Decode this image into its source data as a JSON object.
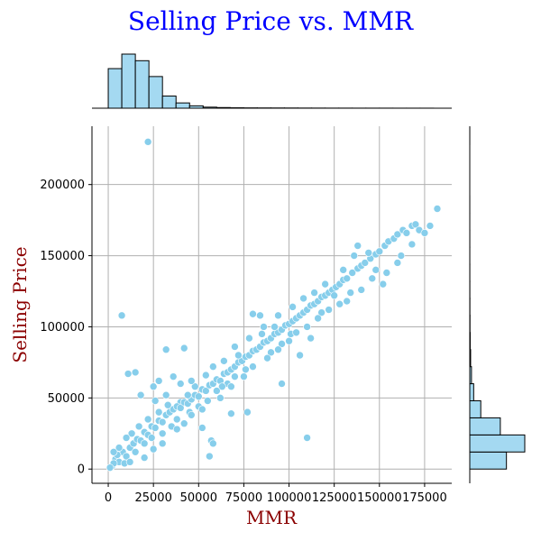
{
  "chart_data": {
    "type": "scatter",
    "title": "Selling Price vs. MMR",
    "xlabel": "MMR",
    "ylabel": "Selling Price",
    "xlim": [
      -9000,
      190000
    ],
    "ylim": [
      -10000,
      241000
    ],
    "xticks": [
      0,
      25000,
      50000,
      75000,
      100000,
      125000,
      150000,
      175000
    ],
    "xtick_labels": [
      "0",
      "25000",
      "50000",
      "75000",
      "100000",
      "125000",
      "150000",
      "175000"
    ],
    "yticks": [
      0,
      50000,
      100000,
      150000,
      200000
    ],
    "ytick_labels": [
      "0",
      "50000",
      "100000",
      "150000",
      "200000"
    ],
    "grid": true,
    "point_color": "#87ceeb",
    "point_edge_color": "#ffffff",
    "marginal_color": "#a4d9f1",
    "points": [
      [
        22000,
        230000
      ],
      [
        7500,
        108000
      ],
      [
        110000,
        22000
      ],
      [
        11000,
        67000
      ],
      [
        15000,
        68000
      ],
      [
        32000,
        84000
      ],
      [
        42000,
        85000
      ],
      [
        80000,
        109000
      ],
      [
        84000,
        108000
      ],
      [
        18000,
        52000
      ],
      [
        25000,
        58000
      ],
      [
        28000,
        62000
      ],
      [
        36000,
        65000
      ],
      [
        40000,
        47000
      ],
      [
        45000,
        40000
      ],
      [
        52000,
        29000
      ],
      [
        56000,
        9000
      ],
      [
        57000,
        20000
      ],
      [
        58000,
        18000
      ],
      [
        68000,
        39000
      ],
      [
        77000,
        40000
      ],
      [
        96000,
        60000
      ],
      [
        106000,
        80000
      ],
      [
        112000,
        92000
      ],
      [
        2000,
        2000
      ],
      [
        4000,
        7000
      ],
      [
        6000,
        5000
      ],
      [
        8000,
        12000
      ],
      [
        10000,
        9000
      ],
      [
        12000,
        15000
      ],
      [
        14000,
        18000
      ],
      [
        16000,
        21000
      ],
      [
        18000,
        20000
      ],
      [
        20000,
        26000
      ],
      [
        22000,
        24000
      ],
      [
        24000,
        30000
      ],
      [
        26000,
        29000
      ],
      [
        28000,
        34000
      ],
      [
        30000,
        33000
      ],
      [
        32000,
        38000
      ],
      [
        34000,
        40000
      ],
      [
        36000,
        42000
      ],
      [
        38000,
        44000
      ],
      [
        40000,
        43000
      ],
      [
        42000,
        47000
      ],
      [
        44000,
        46000
      ],
      [
        46000,
        49000
      ],
      [
        48000,
        52000
      ],
      [
        50000,
        51000
      ],
      [
        52000,
        56000
      ],
      [
        54000,
        55000
      ],
      [
        56000,
        59000
      ],
      [
        58000,
        60000
      ],
      [
        60000,
        63000
      ],
      [
        62000,
        62000
      ],
      [
        64000,
        67000
      ],
      [
        66000,
        68000
      ],
      [
        68000,
        70000
      ],
      [
        70000,
        72000
      ],
      [
        72000,
        75000
      ],
      [
        74000,
        76000
      ],
      [
        76000,
        79000
      ],
      [
        78000,
        80000
      ],
      [
        80000,
        83000
      ],
      [
        82000,
        84000
      ],
      [
        84000,
        86000
      ],
      [
        86000,
        89000
      ],
      [
        88000,
        90000
      ],
      [
        90000,
        92000
      ],
      [
        92000,
        95000
      ],
      [
        94000,
        96000
      ],
      [
        96000,
        98000
      ],
      [
        98000,
        101000
      ],
      [
        100000,
        102000
      ],
      [
        102000,
        104000
      ],
      [
        104000,
        106000
      ],
      [
        106000,
        108000
      ],
      [
        108000,
        110000
      ],
      [
        110000,
        112000
      ],
      [
        112000,
        115000
      ],
      [
        114000,
        116000
      ],
      [
        116000,
        118000
      ],
      [
        118000,
        121000
      ],
      [
        120000,
        122000
      ],
      [
        122000,
        124000
      ],
      [
        124000,
        126000
      ],
      [
        126000,
        128000
      ],
      [
        128000,
        130000
      ],
      [
        130000,
        133000
      ],
      [
        132000,
        134000
      ],
      [
        135000,
        138000
      ],
      [
        138000,
        141000
      ],
      [
        140000,
        143000
      ],
      [
        142000,
        145000
      ],
      [
        145000,
        148000
      ],
      [
        148000,
        151000
      ],
      [
        150000,
        153000
      ],
      [
        153000,
        157000
      ],
      [
        155000,
        160000
      ],
      [
        158000,
        162000
      ],
      [
        160000,
        165000
      ],
      [
        163000,
        168000
      ],
      [
        165000,
        166000
      ],
      [
        168000,
        171000
      ],
      [
        170000,
        172000
      ],
      [
        172000,
        168000
      ],
      [
        175000,
        166000
      ],
      [
        178000,
        171000
      ],
      [
        182000,
        183000
      ],
      [
        138000,
        157000
      ],
      [
        152000,
        130000
      ],
      [
        160000,
        145000
      ],
      [
        148000,
        140000
      ],
      [
        132000,
        118000
      ],
      [
        125000,
        122000
      ],
      [
        118000,
        110000
      ],
      [
        101000,
        95000
      ],
      [
        96000,
        88000
      ],
      [
        90000,
        82000
      ],
      [
        92000,
        100000
      ],
      [
        85000,
        95000
      ],
      [
        76000,
        70000
      ],
      [
        70000,
        65000
      ],
      [
        66000,
        60000
      ],
      [
        72000,
        80000
      ],
      [
        63000,
        58000
      ],
      [
        60000,
        55000
      ],
      [
        55000,
        48000
      ],
      [
        50000,
        44000
      ],
      [
        46000,
        38000
      ],
      [
        48000,
        58000
      ],
      [
        44000,
        52000
      ],
      [
        38000,
        35000
      ],
      [
        35000,
        30000
      ],
      [
        30000,
        25000
      ],
      [
        33000,
        45000
      ],
      [
        28000,
        40000
      ],
      [
        24000,
        22000
      ],
      [
        20000,
        18000
      ],
      [
        22000,
        35000
      ],
      [
        17000,
        30000
      ],
      [
        15000,
        12000
      ],
      [
        13000,
        25000
      ],
      [
        10000,
        22000
      ],
      [
        9000,
        4000
      ],
      [
        6000,
        15000
      ],
      [
        5000,
        10000
      ],
      [
        3000,
        4000
      ],
      [
        1000,
        1000
      ],
      [
        3000,
        12000
      ],
      [
        12000,
        5000
      ],
      [
        20000,
        8000
      ],
      [
        25000,
        14000
      ],
      [
        30000,
        18000
      ],
      [
        38000,
        28000
      ],
      [
        42000,
        32000
      ],
      [
        52000,
        42000
      ],
      [
        62000,
        50000
      ],
      [
        68000,
        58000
      ],
      [
        75000,
        65000
      ],
      [
        80000,
        72000
      ],
      [
        88000,
        78000
      ],
      [
        94000,
        84000
      ],
      [
        100000,
        90000
      ],
      [
        104000,
        96000
      ],
      [
        110000,
        100000
      ],
      [
        116000,
        106000
      ],
      [
        122000,
        112000
      ],
      [
        128000,
        116000
      ],
      [
        134000,
        124000
      ],
      [
        140000,
        126000
      ],
      [
        146000,
        134000
      ],
      [
        154000,
        138000
      ],
      [
        162000,
        150000
      ],
      [
        168000,
        158000
      ],
      [
        26000,
        48000
      ],
      [
        32000,
        52000
      ],
      [
        40000,
        60000
      ],
      [
        46000,
        62000
      ],
      [
        54000,
        66000
      ],
      [
        58000,
        72000
      ],
      [
        64000,
        76000
      ],
      [
        70000,
        86000
      ],
      [
        78000,
        92000
      ],
      [
        86000,
        100000
      ],
      [
        94000,
        108000
      ],
      [
        102000,
        114000
      ],
      [
        108000,
        120000
      ],
      [
        114000,
        124000
      ],
      [
        120000,
        130000
      ],
      [
        130000,
        140000
      ],
      [
        136000,
        150000
      ],
      [
        144000,
        152000
      ]
    ],
    "hist_x": {
      "bins": [
        0,
        7500,
        15000,
        22500,
        30000,
        37500,
        45000,
        52500,
        60000,
        67500,
        75000,
        82500,
        90000,
        97500,
        105000,
        112500,
        120000,
        127500,
        135000,
        142500,
        150000,
        157500,
        165000,
        172500,
        180000
      ],
      "counts": [
        1500,
        2050,
        1800,
        1200,
        460,
        200,
        90,
        40,
        25,
        16,
        12,
        10,
        9,
        8,
        6,
        5,
        4,
        4,
        3,
        3,
        3,
        2,
        2,
        2
      ]
    },
    "hist_y": {
      "bins": [
        0,
        12000,
        24000,
        36000,
        48000,
        60000,
        72000,
        84000,
        96000,
        108000,
        120000,
        132000,
        144000,
        156000,
        168000,
        180000,
        192000,
        204000,
        216000,
        228000,
        240000
      ],
      "counts": [
        1500,
        2250,
        1250,
        450,
        160,
        70,
        35,
        18,
        10,
        6,
        4,
        3,
        2,
        2,
        1,
        1,
        0,
        0,
        0,
        1
      ]
    }
  }
}
